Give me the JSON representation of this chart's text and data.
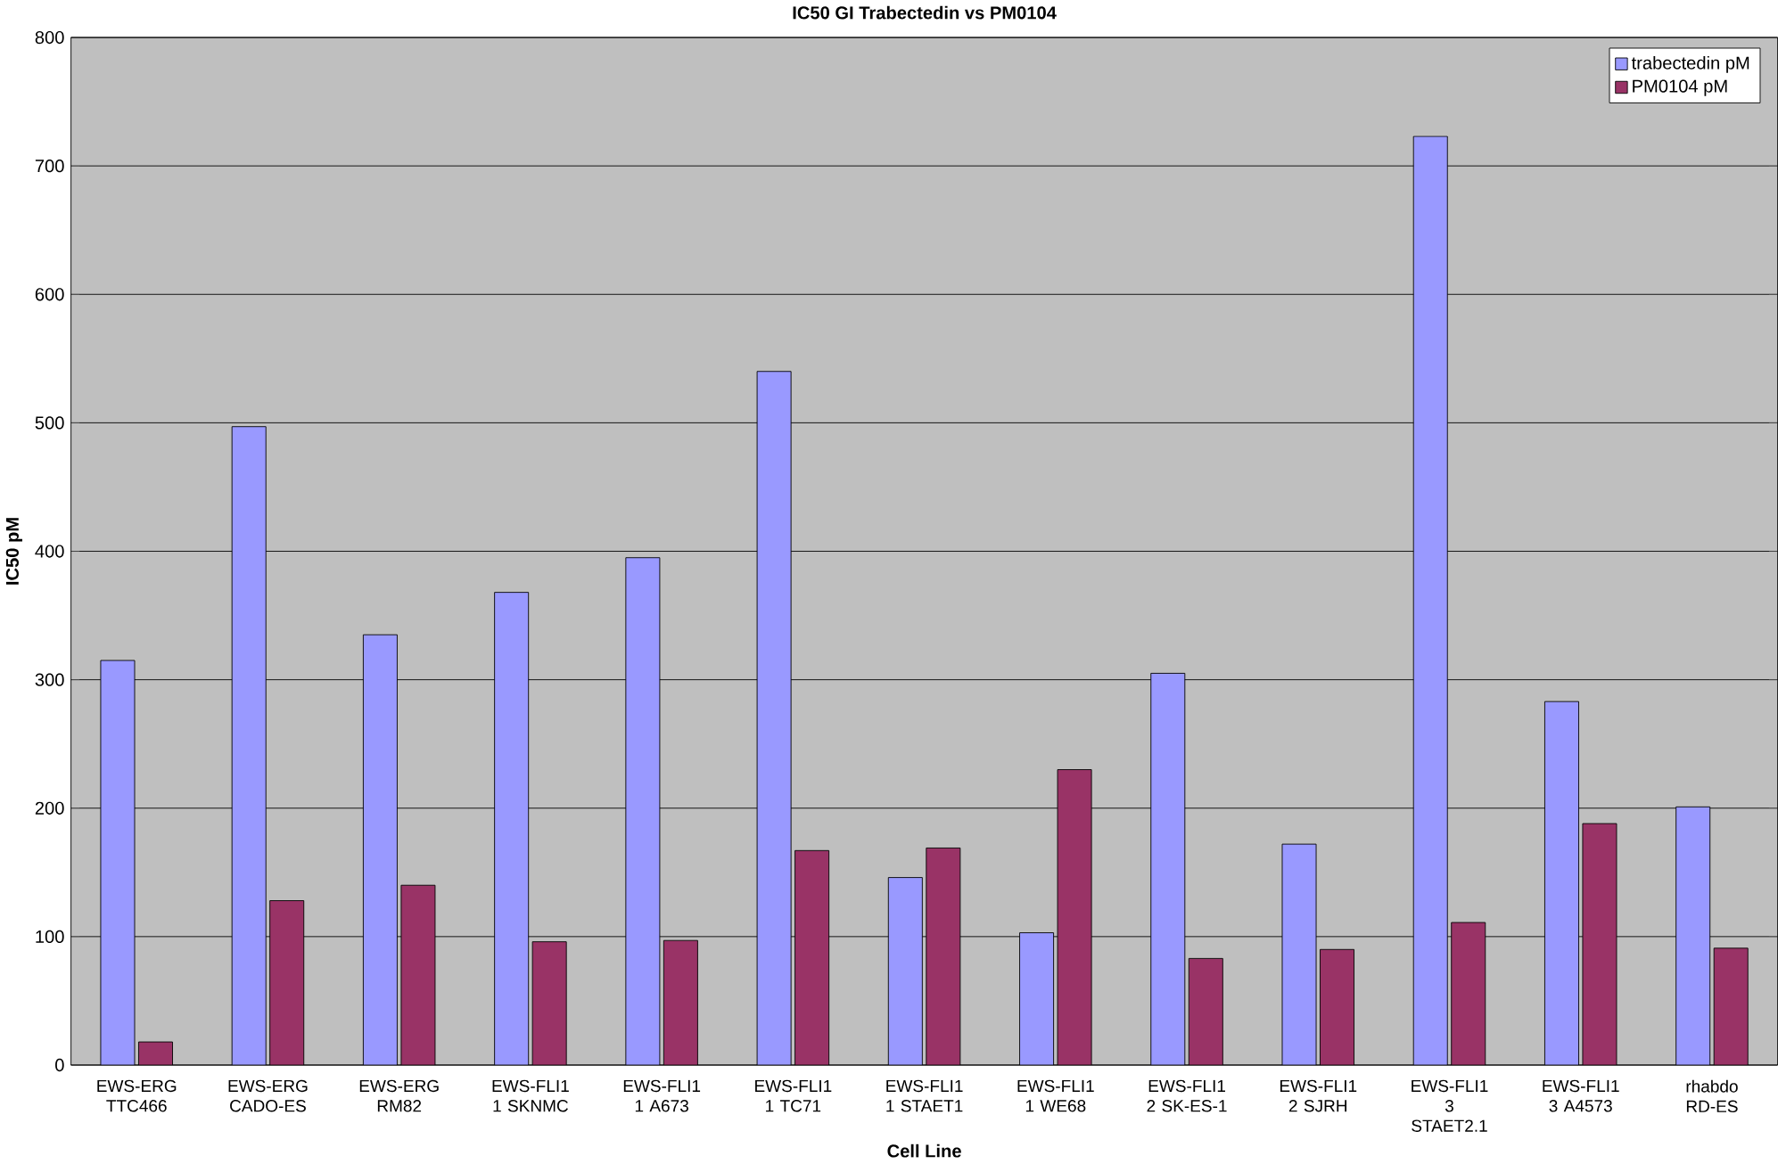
{
  "chart_data": {
    "type": "bar",
    "title": "IC50 GI Trabectedin vs PM0104",
    "xlabel": "Cell Line",
    "ylabel": "IC50 pM",
    "categories": [
      "EWS-ERG TTC466",
      "EWS-ERG CADO-ES",
      "EWS-ERG RM82",
      "EWS-FLI1 1 SKNMC",
      "EWS-FLI1 1 A673",
      "EWS-FLI1 1 TC71",
      "EWS-FLI1 1 STAET1",
      "EWS-FLI1 1 WE68",
      "EWS-FLI1 2 SK-ES-1",
      "EWS-FLI1 2 SJRH",
      "EWS-FLI1 3 STAET2.1",
      "EWS-FLI1 3 A4573",
      "rhabdo RD-ES"
    ],
    "series": [
      {
        "name": "trabectedin pM",
        "color": "#9999ff",
        "values": [
          315,
          497,
          335,
          368,
          395,
          540,
          146,
          103,
          305,
          172,
          723,
          283,
          201
        ]
      },
      {
        "name": "PM0104 pM",
        "color": "#993366",
        "values": [
          18,
          128,
          140,
          96,
          97,
          167,
          169,
          230,
          83,
          90,
          111,
          188,
          91
        ]
      }
    ],
    "ylim": [
      0,
      800
    ],
    "yticks": [
      0,
      100,
      200,
      300,
      400,
      500,
      600,
      700,
      800
    ],
    "grid": "y",
    "legend": "top right"
  }
}
